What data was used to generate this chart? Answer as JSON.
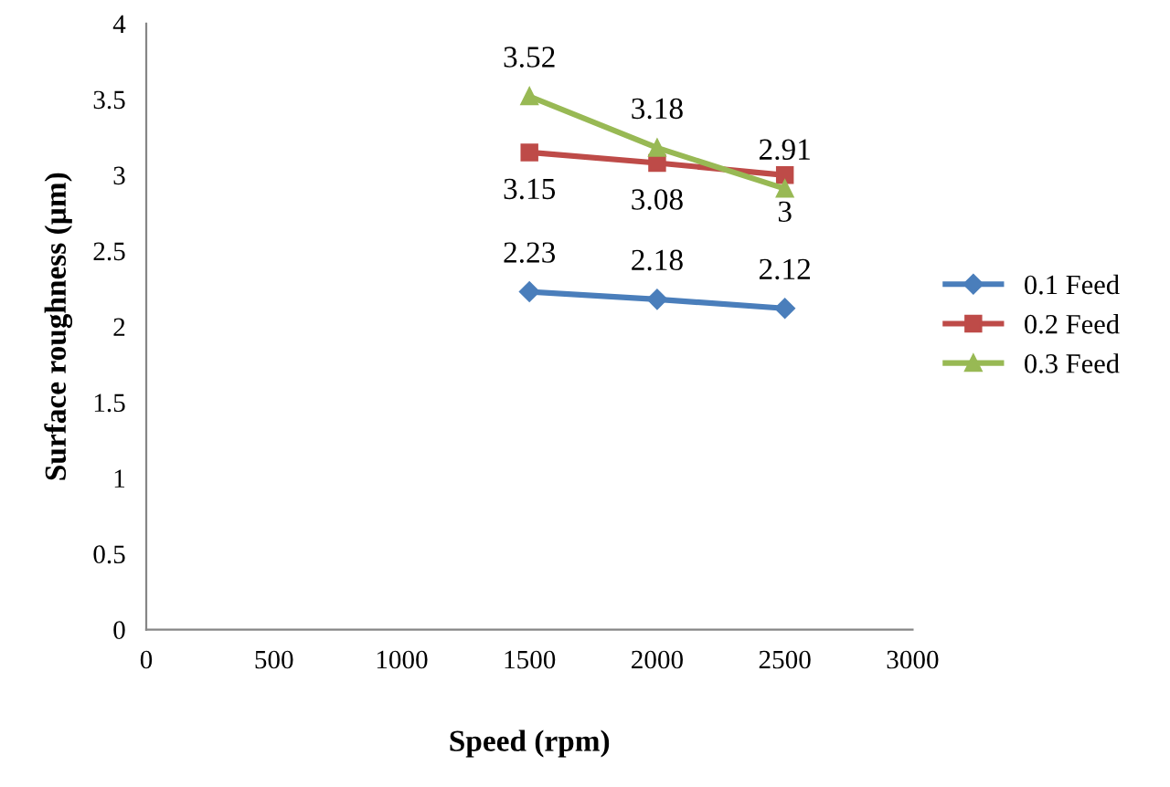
{
  "chart_data": {
    "type": "line",
    "xlabel": "Speed (rpm)",
    "ylabel": "Surface roughness (µm)",
    "x": [
      1500,
      2000,
      2500
    ],
    "series": [
      {
        "name": "0.1 Feed",
        "color": "#4a7ebb",
        "marker": "diamond",
        "values": [
          2.23,
          2.18,
          2.12
        ]
      },
      {
        "name": "0.2 Feed",
        "color": "#be4b48",
        "marker": "square",
        "values": [
          3.15,
          3.08,
          3
        ]
      },
      {
        "name": "0.3 Feed",
        "color": "#98b954",
        "marker": "triangle",
        "values": [
          3.52,
          3.18,
          2.91
        ]
      }
    ],
    "xlim": [
      0,
      3000
    ],
    "xticks": [
      0,
      500,
      1000,
      1500,
      2000,
      2500,
      3000
    ],
    "ylim": [
      0,
      4
    ],
    "yticks": [
      0,
      0.5,
      1,
      1.5,
      2,
      2.5,
      3,
      3.5,
      4
    ],
    "data_labels": true,
    "grid": false,
    "legend": "right",
    "line_style": "solid"
  }
}
